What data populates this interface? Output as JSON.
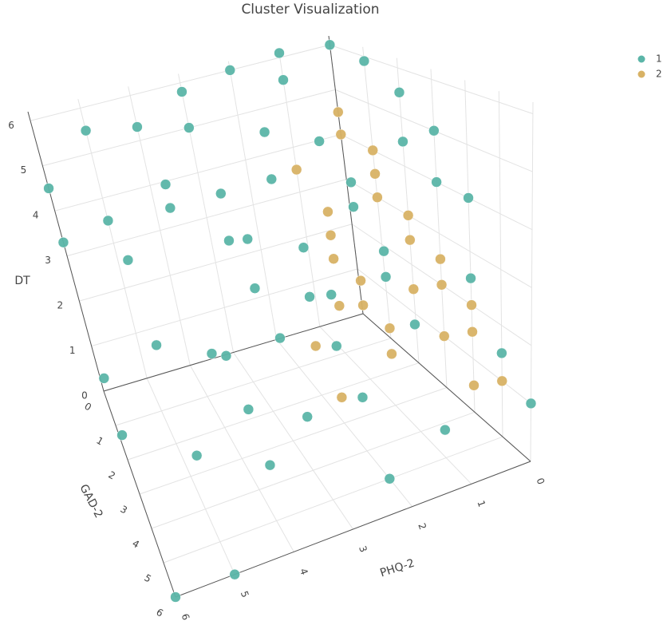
{
  "chart_data": {
    "type": "scatter3d",
    "title": "Cluster Visualization",
    "x_label": "PHQ-2",
    "y_label": "GAD-2",
    "z_label": "DT",
    "xlim": [
      0,
      6
    ],
    "ylim": [
      0,
      6
    ],
    "zlim": [
      0,
      6.2
    ],
    "xticks": [
      0,
      1,
      2,
      3,
      4,
      5,
      6
    ],
    "yticks": [
      0,
      1,
      2,
      3,
      4,
      5,
      6
    ],
    "zticks": [
      0,
      1,
      2,
      3,
      4,
      5,
      6
    ],
    "grid": true,
    "legend": "top-right",
    "series": [
      {
        "name": "1",
        "color": "#5bb5a8",
        "x": [
          6,
          6,
          6,
          5,
          5,
          4,
          6,
          5,
          5,
          4,
          5,
          4,
          4,
          4,
          3,
          3,
          3,
          4,
          3,
          3,
          2,
          2,
          2,
          1,
          0,
          0,
          0,
          0,
          0,
          0,
          1,
          1,
          1,
          1,
          0,
          0,
          0,
          1,
          2,
          2,
          2,
          3,
          2,
          1,
          3,
          2,
          1,
          0,
          5,
          6,
          3,
          4,
          1,
          2
        ],
        "y": [
          0,
          1,
          6,
          6,
          4,
          5,
          0,
          1,
          0,
          0,
          0,
          1,
          2,
          1,
          0,
          1,
          1,
          3,
          2,
          2,
          3,
          0,
          1,
          0,
          0,
          1,
          2,
          3,
          3,
          4,
          1,
          2,
          3,
          4,
          4,
          5,
          6,
          5,
          4,
          2,
          2,
          3,
          3,
          2,
          4,
          5,
          0,
          2,
          2,
          2,
          0,
          4,
          3,
          1
        ],
        "z": [
          4.5,
          1,
          0,
          0,
          1,
          1,
          3.3,
          3.2,
          3.5,
          5.3,
          5.5,
          4.5,
          1.5,
          4,
          5.8,
          4,
          3,
          2,
          3.5,
          2.5,
          1.5,
          6,
          5,
          6.1,
          6,
          5.9,
          5.5,
          5,
          4,
          4,
          4.5,
          4,
          3,
          2,
          2.5,
          1.5,
          1,
          0.5,
          1,
          3,
          2,
          2,
          2.5,
          3.5,
          1,
          0,
          5.5,
          4.5,
          2,
          0.5,
          5,
          1.5,
          2.5,
          4
        ]
      },
      {
        "name": "2",
        "color": "#d8b265",
        "x": [
          0,
          0,
          0,
          0,
          0,
          0,
          0,
          1,
          1,
          1,
          1,
          0,
          0,
          0,
          1,
          1,
          0,
          1,
          0,
          0,
          2,
          2,
          1,
          1,
          0,
          0
        ],
        "y": [
          0,
          0,
          1,
          1,
          1,
          2,
          2,
          1,
          1,
          2,
          2,
          3,
          3,
          4,
          3,
          3,
          2,
          1,
          5,
          4,
          3,
          2,
          0,
          1,
          3,
          4
        ],
        "z": [
          4.5,
          4,
          4,
          3.5,
          3,
          3,
          2.5,
          3,
          2.5,
          2,
          1.5,
          2.5,
          2,
          1.5,
          1,
          1.5,
          1.5,
          1,
          1,
          0.5,
          0.5,
          1,
          3.5,
          2,
          1,
          2
        ]
      }
    ]
  }
}
